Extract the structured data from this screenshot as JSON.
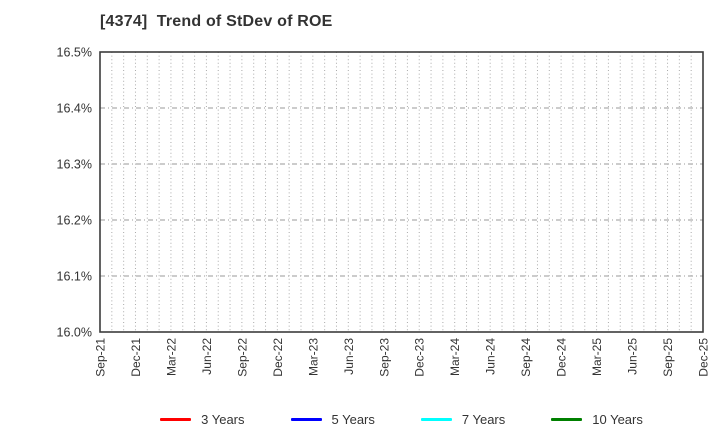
{
  "chart": {
    "title": "[4374]  Trend of StDev of ROE",
    "title_color": "#333333",
    "background": "#ffffff",
    "border_color": "#3c3c3c",
    "v_grid_color": "#aaaaaa",
    "h_grid_color": "#9a9a9a",
    "tick_label_color": "#333333",
    "y_tick_labels_bottom_to_top": [
      "16.0%",
      "16.1%",
      "16.2%",
      "16.3%",
      "16.4%",
      "16.5%"
    ],
    "x_tick_labels": [
      "Sep-21",
      "Dec-21",
      "Mar-22",
      "Jun-22",
      "Sep-22",
      "Dec-22",
      "Mar-23",
      "Jun-23",
      "Sep-23",
      "Dec-23",
      "Mar-24",
      "Jun-24",
      "Sep-24",
      "Dec-24",
      "Mar-25",
      "Jun-25",
      "Sep-25",
      "Dec-25"
    ],
    "minor_gridlines_per_label_interval": 3
  },
  "legend": {
    "position": "bottom",
    "items": [
      {
        "label": "3 Years",
        "color": "#ff0000"
      },
      {
        "label": "5 Years",
        "color": "#0000ff"
      },
      {
        "label": "7 Years",
        "color": "#00ffff"
      },
      {
        "label": "10 Years",
        "color": "#008000"
      }
    ]
  },
  "chart_data": {
    "type": "line",
    "title": "[4374]  Trend of StDev of ROE",
    "xlabel": "",
    "ylabel": "",
    "x_categories": [
      "Sep-21",
      "Dec-21",
      "Mar-22",
      "Jun-22",
      "Sep-22",
      "Dec-22",
      "Mar-23",
      "Jun-23",
      "Sep-23",
      "Dec-23",
      "Mar-24",
      "Jun-24",
      "Sep-24",
      "Dec-24",
      "Mar-25",
      "Jun-25",
      "Sep-25",
      "Dec-25"
    ],
    "ylim": [
      16.0,
      16.5
    ],
    "y_tick_step": 0.1,
    "y_unit": "%",
    "grid": true,
    "legend_position": "bottom",
    "plot_area_empty": true,
    "series": [
      {
        "name": "3 Years",
        "color": "#ff0000",
        "values": []
      },
      {
        "name": "5 Years",
        "color": "#0000ff",
        "values": []
      },
      {
        "name": "7 Years",
        "color": "#00ffff",
        "values": []
      },
      {
        "name": "10 Years",
        "color": "#008000",
        "values": []
      }
    ]
  }
}
